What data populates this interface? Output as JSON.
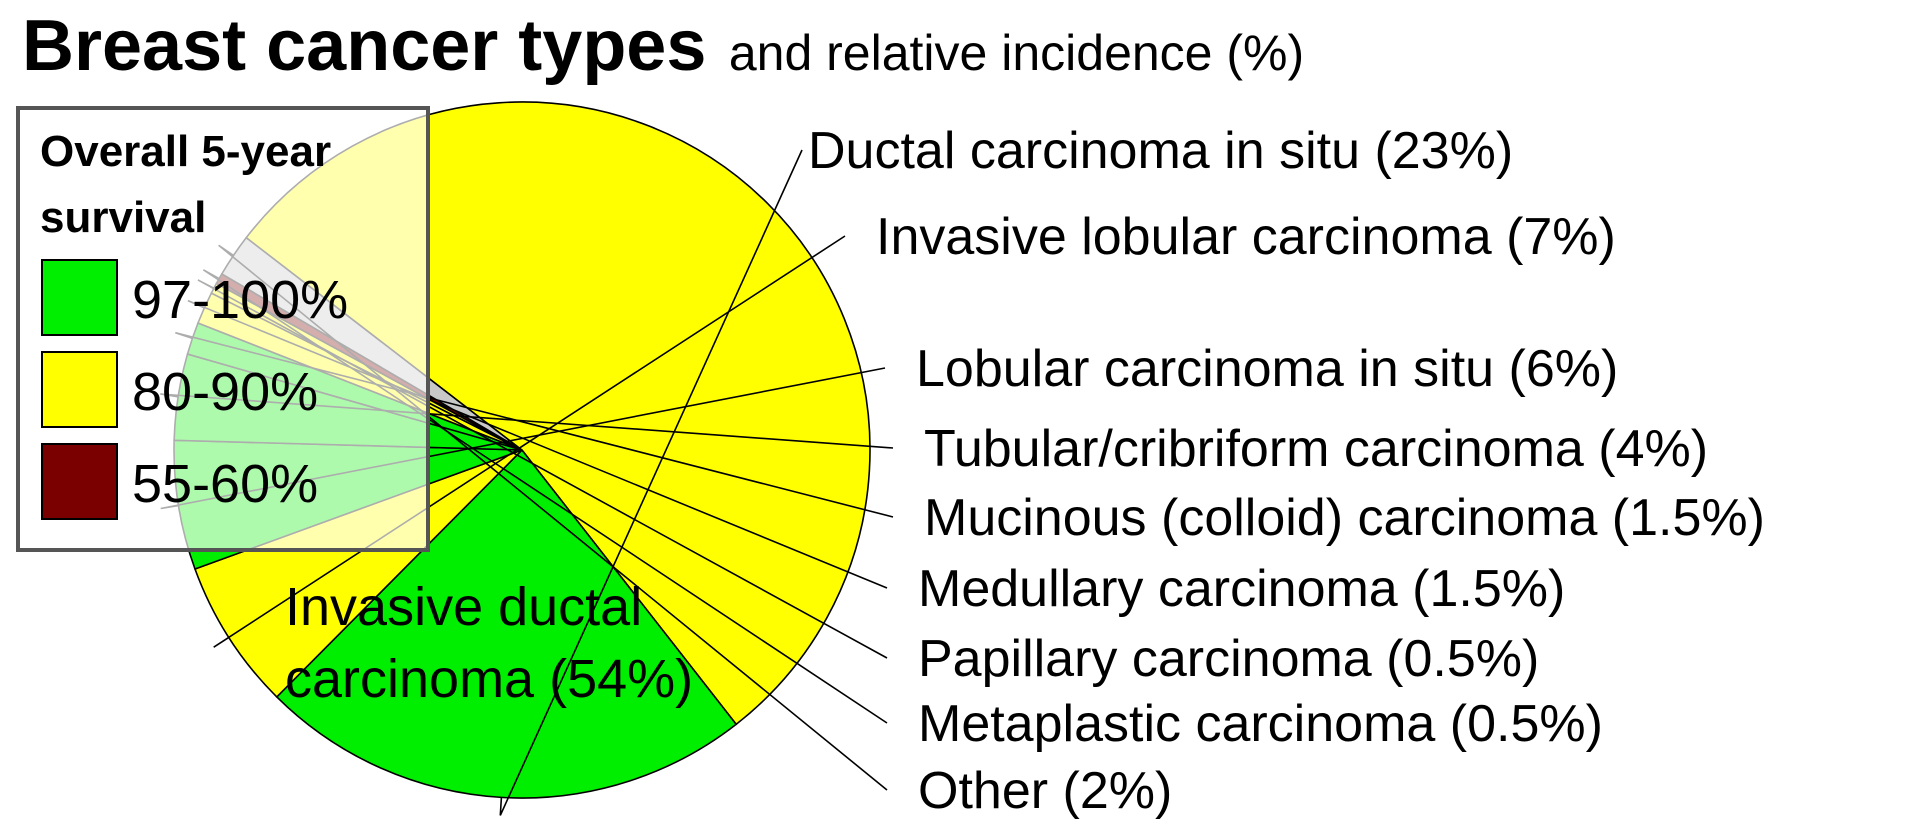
{
  "chart_data": {
    "type": "pie",
    "title": "Breast cancer types",
    "subtitle": "and relative incidence (%)",
    "unit": "%",
    "slices": [
      {
        "label": "Ductal carcinoma in situ (23%)",
        "value": 23,
        "survival_group": "97-100%",
        "color": "#00ee00"
      },
      {
        "label": "Invasive lobular carcinoma (7%)",
        "value": 7,
        "survival_group": "80-90%",
        "color": "#ffff00"
      },
      {
        "label": "Lobular carcinoma in situ (6%)",
        "value": 6,
        "survival_group": "97-100%",
        "color": "#00ee00"
      },
      {
        "label": "Tubular/cribriform carcinoma (4%)",
        "value": 4,
        "survival_group": "97-100%",
        "color": "#00ee00"
      },
      {
        "label": "Mucinous (colloid) carcinoma (1.5%)",
        "value": 1.5,
        "survival_group": "97-100%",
        "color": "#00ee00"
      },
      {
        "label": "Medullary carcinoma (1.5%)",
        "value": 1.5,
        "survival_group": "80-90%",
        "color": "#ffff00"
      },
      {
        "label": "Papillary carcinoma (0.5%)",
        "value": 0.5,
        "survival_group": "80-90%",
        "color": "#ffff00"
      },
      {
        "label": "Metaplastic carcinoma (0.5%)",
        "value": 0.5,
        "survival_group": "55-60%",
        "color": "#7a0000"
      },
      {
        "label": "Other (2%)",
        "value": 2,
        "survival_group": "",
        "color": "#c8c8c8"
      },
      {
        "label": "Invasive ductal carcinoma (54%)",
        "label_lines": [
          "Invasive ductal",
          "carcinoma (54%)"
        ],
        "value": 54,
        "survival_group": "80-90%",
        "color": "#ffff00"
      }
    ],
    "legend": {
      "title_lines": [
        "Overall 5-year",
        "survival"
      ],
      "placement": "top-left, overlapping pie",
      "items": [
        {
          "label": "97-100%",
          "color": "#00ee00"
        },
        {
          "label": "80-90%",
          "color": "#ffff00"
        },
        {
          "label": "55-60%",
          "color": "#7a0000"
        }
      ]
    }
  }
}
